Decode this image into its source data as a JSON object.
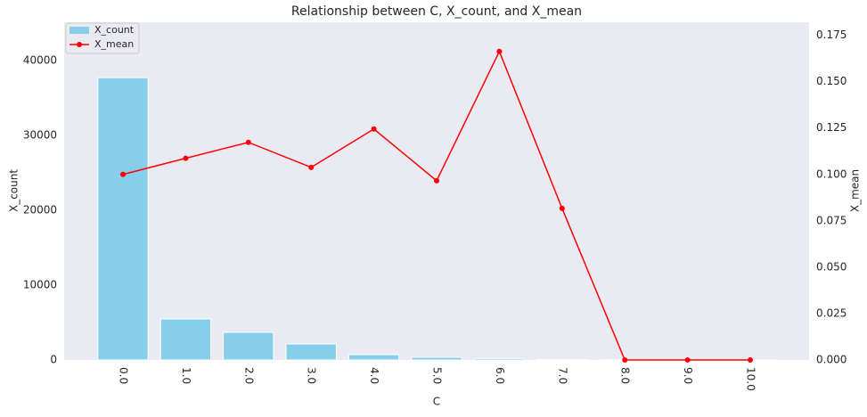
{
  "chart_data": {
    "type": "bar_line",
    "title": "Relationship between C, X_count, and X_mean",
    "xlabel": "C",
    "ylabel": "X_count",
    "y2label": "X_mean",
    "categories": [
      "0.0",
      "1.0",
      "2.0",
      "3.0",
      "4.0",
      "5.0",
      "6.0",
      "7.0",
      "8.0",
      "9.0",
      "10.0"
    ],
    "series": [
      {
        "name": "X_count",
        "type": "bar",
        "color": "#87ceeb",
        "values": [
          37700,
          5480,
          3690,
          2140,
          710,
          360,
          200,
          60,
          20,
          10,
          5
        ]
      },
      {
        "name": "X_mean",
        "type": "line",
        "axis": "y2",
        "color": "#ff0000",
        "values": [
          0.1,
          0.1087,
          0.1173,
          0.1038,
          0.1245,
          0.0966,
          0.1663,
          0.0817,
          0,
          0,
          0
        ]
      }
    ],
    "ylim": [
      0,
      45100
    ],
    "yticks": [
      0,
      10000,
      20000,
      30000,
      40000
    ],
    "y2lim": [
      0,
      0.182
    ],
    "y2ticks": [
      {
        "value": 0,
        "label": "0.000"
      },
      {
        "value": 0.025,
        "label": "0.025"
      },
      {
        "value": 0.05,
        "label": "0.050"
      },
      {
        "value": 0.075,
        "label": "0.075"
      },
      {
        "value": 0.1,
        "label": "0.100"
      },
      {
        "value": 0.125,
        "label": "0.125"
      },
      {
        "value": 0.15,
        "label": "0.150"
      },
      {
        "value": 0.175,
        "label": "0.175"
      }
    ],
    "legend": "upper left",
    "grid": false
  }
}
